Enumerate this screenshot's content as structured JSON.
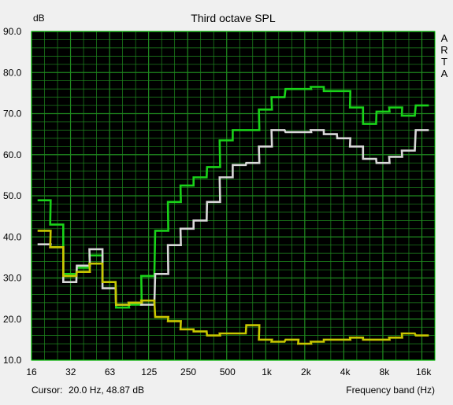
{
  "chart_data": {
    "type": "line",
    "title": "Third octave SPL",
    "ylabel": "dB",
    "xlabel": "Frequency band (Hz)",
    "watermark": "ARTA",
    "cursor_label": "Cursor:",
    "cursor_value": "20.0 Hz, 48.87 dB",
    "ylim": [
      10,
      90
    ],
    "y_ticks": [
      "90.0",
      "80.0",
      "70.0",
      "60.0",
      "50.0",
      "40.0",
      "30.0",
      "20.0",
      "10.0"
    ],
    "x_tick_labels": [
      "16",
      "32",
      "63",
      "125",
      "250",
      "500",
      "1k",
      "2k",
      "4k",
      "8k",
      "16k"
    ],
    "x_scale": "log",
    "x_range_hz": [
      16,
      20000
    ],
    "grid": true,
    "colors": {
      "plot_background": "#000000",
      "grid": "#1f8a1f",
      "frame": "#00c000",
      "window_background": "#f0f0f0"
    },
    "bands": [
      20,
      25,
      31.5,
      40,
      50,
      63,
      80,
      100,
      125,
      160,
      200,
      250,
      315,
      400,
      500,
      630,
      800,
      1000,
      1250,
      1600,
      2000,
      2500,
      3150,
      4000,
      5000,
      6300,
      8000,
      10000,
      12500,
      16000
    ],
    "series": [
      {
        "color": "#19d219",
        "values": [
          48.9,
          43.0,
          31.0,
          32.5,
          35.5,
          29.0,
          22.8,
          23.5,
          30.5,
          41.5,
          48.5,
          52.5,
          54.5,
          57.0,
          63.5,
          66.0,
          66.0,
          71.0,
          74.0,
          76.0,
          76.0,
          76.5,
          75.5,
          75.5,
          71.5,
          67.5,
          70.5,
          71.5,
          69.5,
          72.0
        ]
      },
      {
        "color": "#d8d8d8",
        "values": [
          38.2,
          37.5,
          29.0,
          33.0,
          37.0,
          27.5,
          23.5,
          24.0,
          23.5,
          31.0,
          38.0,
          42.0,
          44.0,
          48.5,
          54.5,
          57.5,
          58.0,
          62.0,
          66.0,
          65.5,
          65.5,
          66.0,
          65.0,
          64.0,
          62.0,
          59.0,
          58.0,
          59.5,
          61.0,
          66.0
        ]
      },
      {
        "color": "#c8c800",
        "values": [
          41.5,
          37.5,
          30.5,
          31.5,
          33.5,
          29.0,
          23.5,
          24.0,
          24.5,
          20.5,
          19.5,
          17.5,
          17.0,
          16.0,
          16.5,
          16.5,
          18.5,
          15.0,
          14.5,
          15.0,
          14.0,
          14.5,
          15.0,
          15.0,
          15.5,
          15.0,
          15.0,
          15.5,
          16.5,
          16.0
        ]
      }
    ]
  }
}
